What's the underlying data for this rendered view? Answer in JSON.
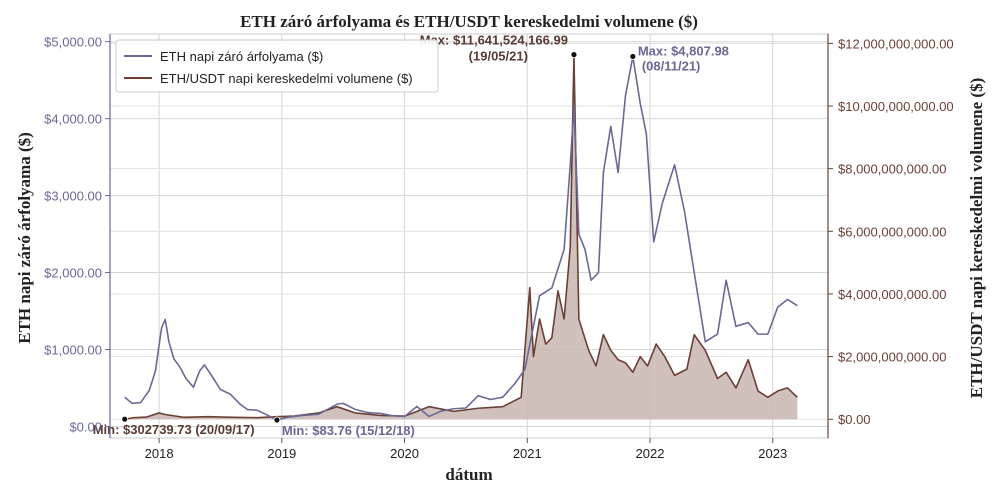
{
  "chart_data": {
    "type": "line",
    "title": "ETH záró árfolyama és ETH/USDT kereskedelmi volumene ($)",
    "xlabel": "dátum",
    "ylabel_left": "ETH napi záró árfolyama ($)",
    "ylabel_right": "ETH/USDT napi kereskedelmi volumene ($)",
    "x_ticks": [
      "2018",
      "2019",
      "2020",
      "2021",
      "2022",
      "2023"
    ],
    "y_left_ticks": [
      "$0.00",
      "$1,000.00",
      "$2,000.00",
      "$3,000.00",
      "$4,000.00",
      "$5,000.00"
    ],
    "y_right_ticks": [
      "$0.00",
      "$2,000,000,000.00",
      "$4,000,000,000.00",
      "$6,000,000,000.00",
      "$8,000,000,000.00",
      "$10,000,000,000.00",
      "$12,000,000,000.00"
    ],
    "ylim_left": [
      -150,
      5100
    ],
    "ylim_right": [
      -600000000,
      12300000000
    ],
    "xlim": [
      2017.6,
      2023.45
    ],
    "grid": true,
    "legend_position": "top-left",
    "series": [
      {
        "name": "ETH napi záró árfolyama ($)",
        "color": "#6b6896",
        "axis": "left",
        "points": [
          [
            2017.72,
            380
          ],
          [
            2017.78,
            300
          ],
          [
            2017.85,
            310
          ],
          [
            2017.92,
            470
          ],
          [
            2017.97,
            720
          ],
          [
            2018.02,
            1280
          ],
          [
            2018.05,
            1390
          ],
          [
            2018.08,
            1100
          ],
          [
            2018.12,
            880
          ],
          [
            2018.17,
            770
          ],
          [
            2018.22,
            620
          ],
          [
            2018.28,
            510
          ],
          [
            2018.33,
            720
          ],
          [
            2018.37,
            800
          ],
          [
            2018.42,
            680
          ],
          [
            2018.5,
            480
          ],
          [
            2018.58,
            420
          ],
          [
            2018.66,
            290
          ],
          [
            2018.72,
            220
          ],
          [
            2018.8,
            210
          ],
          [
            2018.88,
            150
          ],
          [
            2018.96,
            84
          ],
          [
            2019.05,
            120
          ],
          [
            2019.15,
            140
          ],
          [
            2019.3,
            160
          ],
          [
            2019.45,
            290
          ],
          [
            2019.5,
            300
          ],
          [
            2019.6,
            220
          ],
          [
            2019.7,
            180
          ],
          [
            2019.8,
            170
          ],
          [
            2019.9,
            140
          ],
          [
            2020.0,
            130
          ],
          [
            2020.1,
            260
          ],
          [
            2020.2,
            130
          ],
          [
            2020.3,
            200
          ],
          [
            2020.4,
            230
          ],
          [
            2020.5,
            240
          ],
          [
            2020.6,
            400
          ],
          [
            2020.7,
            350
          ],
          [
            2020.8,
            380
          ],
          [
            2020.9,
            560
          ],
          [
            2020.98,
            740
          ],
          [
            2021.05,
            1300
          ],
          [
            2021.1,
            1700
          ],
          [
            2021.2,
            1800
          ],
          [
            2021.3,
            2300
          ],
          [
            2021.35,
            3400
          ],
          [
            2021.38,
            4170
          ],
          [
            2021.42,
            2500
          ],
          [
            2021.47,
            2300
          ],
          [
            2021.52,
            1900
          ],
          [
            2021.58,
            2000
          ],
          [
            2021.62,
            3300
          ],
          [
            2021.68,
            3900
          ],
          [
            2021.74,
            3300
          ],
          [
            2021.8,
            4300
          ],
          [
            2021.86,
            4808
          ],
          [
            2021.92,
            4200
          ],
          [
            2021.97,
            3800
          ],
          [
            2022.03,
            2400
          ],
          [
            2022.1,
            2900
          ],
          [
            2022.2,
            3400
          ],
          [
            2022.28,
            2800
          ],
          [
            2022.36,
            2000
          ],
          [
            2022.45,
            1100
          ],
          [
            2022.55,
            1200
          ],
          [
            2022.62,
            1900
          ],
          [
            2022.7,
            1300
          ],
          [
            2022.8,
            1350
          ],
          [
            2022.88,
            1200
          ],
          [
            2022.96,
            1200
          ],
          [
            2023.04,
            1550
          ],
          [
            2023.12,
            1650
          ],
          [
            2023.2,
            1570
          ]
        ]
      },
      {
        "name": "ETH/USDT napi kereskedelmi volumene ($)",
        "color": "#6b3f36",
        "axis": "right",
        "points": [
          [
            2017.72,
            302739.73
          ],
          [
            2017.8,
            50000000
          ],
          [
            2017.9,
            70000000
          ],
          [
            2018.0,
            200000000
          ],
          [
            2018.05,
            150000000
          ],
          [
            2018.2,
            60000000
          ],
          [
            2018.4,
            80000000
          ],
          [
            2018.6,
            60000000
          ],
          [
            2018.8,
            50000000
          ],
          [
            2018.96,
            80000000
          ],
          [
            2019.1,
            100000000
          ],
          [
            2019.3,
            200000000
          ],
          [
            2019.45,
            400000000
          ],
          [
            2019.6,
            200000000
          ],
          [
            2019.8,
            120000000
          ],
          [
            2020.0,
            100000000
          ],
          [
            2020.2,
            400000000
          ],
          [
            2020.4,
            250000000
          ],
          [
            2020.6,
            350000000
          ],
          [
            2020.8,
            400000000
          ],
          [
            2020.95,
            700000000
          ],
          [
            2021.02,
            4200000000
          ],
          [
            2021.05,
            2000000000
          ],
          [
            2021.1,
            3200000000
          ],
          [
            2021.15,
            2400000000
          ],
          [
            2021.2,
            2600000000
          ],
          [
            2021.25,
            4100000000
          ],
          [
            2021.3,
            3200000000
          ],
          [
            2021.35,
            5500000000
          ],
          [
            2021.38,
            11641524166.99
          ],
          [
            2021.42,
            3200000000
          ],
          [
            2021.5,
            2200000000
          ],
          [
            2021.56,
            1700000000
          ],
          [
            2021.62,
            2700000000
          ],
          [
            2021.68,
            2200000000
          ],
          [
            2021.74,
            1900000000
          ],
          [
            2021.8,
            1800000000
          ],
          [
            2021.86,
            1500000000
          ],
          [
            2021.92,
            2000000000
          ],
          [
            2021.98,
            1700000000
          ],
          [
            2022.05,
            2400000000
          ],
          [
            2022.12,
            2000000000
          ],
          [
            2022.2,
            1400000000
          ],
          [
            2022.3,
            1600000000
          ],
          [
            2022.36,
            2700000000
          ],
          [
            2022.45,
            2200000000
          ],
          [
            2022.55,
            1300000000
          ],
          [
            2022.62,
            1500000000
          ],
          [
            2022.7,
            1000000000
          ],
          [
            2022.8,
            1900000000
          ],
          [
            2022.88,
            900000000
          ],
          [
            2022.96,
            700000000
          ],
          [
            2023.04,
            900000000
          ],
          [
            2023.12,
            1000000000
          ],
          [
            2023.2,
            700000000
          ]
        ]
      }
    ],
    "annotations": [
      {
        "series": 1,
        "kind": "max",
        "x": 2021.38,
        "y": 11641524166.99,
        "label": "Max: $11,641,524,166.99",
        "date": "(19/05/21)"
      },
      {
        "series": 0,
        "kind": "max",
        "x": 2021.86,
        "y": 4807.98,
        "label": "Max: $4,807.98",
        "date": "(08/11/21)"
      },
      {
        "series": 1,
        "kind": "min",
        "x": 2017.72,
        "y": 302739.73,
        "label": "Min: $302739.73 (20/09/17)"
      },
      {
        "series": 0,
        "kind": "min",
        "x": 2018.96,
        "y": 83.76,
        "label": "Min: $83.76 (15/12/18)"
      }
    ]
  }
}
